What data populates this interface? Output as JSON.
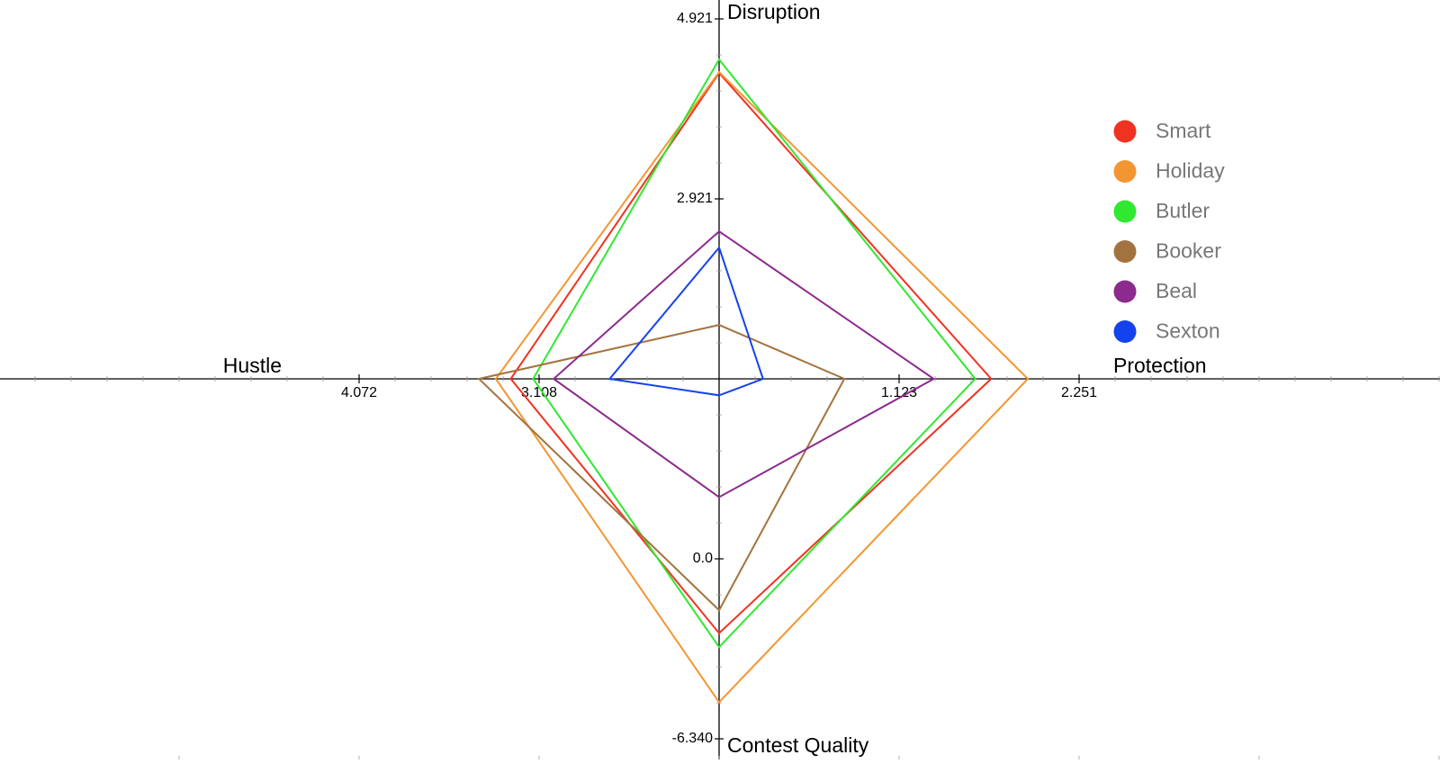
{
  "chart_data": {
    "type": "radar",
    "axes": [
      {
        "name": "Disruption",
        "lim": [
          0.921,
          4.921
        ],
        "ticks": [
          2.921,
          4.921
        ]
      },
      {
        "name": "Protection",
        "lim": [
          -0.005,
          2.251
        ],
        "ticks": [
          1.123,
          2.251
        ]
      },
      {
        "name": "Contest Quality",
        "lim": [
          6.34,
          -6.34
        ],
        "ticks": [
          {
            "value": 0,
            "label": "0.0"
          },
          {
            "value": -6.34,
            "label": "-6.340"
          }
        ]
      },
      {
        "name": "Hustle",
        "lim": [
          2.144,
          4.072
        ],
        "ticks": [
          3.108,
          4.072
        ]
      }
    ],
    "series": [
      {
        "name": "Smart",
        "color": "#f03222",
        "values": [
          4.32,
          1.7,
          -2.62,
          3.26
        ]
      },
      {
        "name": "Holiday",
        "color": "#f39632",
        "values": [
          4.33,
          1.93,
          -5.05,
          3.34
        ]
      },
      {
        "name": "Butler",
        "color": "#30e830",
        "values": [
          4.47,
          1.6,
          -3.11,
          3.14
        ]
      },
      {
        "name": "Booker",
        "color": "#a3733f",
        "values": [
          1.52,
          0.78,
          -1.81,
          3.43
        ]
      },
      {
        "name": "Beal",
        "color": "#8c2a8e",
        "values": [
          2.56,
          1.34,
          2.17,
          3.03
        ]
      },
      {
        "name": "Sexton",
        "color": "#1443ec",
        "values": [
          2.38,
          0.27,
          5.76,
          2.73
        ]
      }
    ],
    "legend": "right"
  }
}
